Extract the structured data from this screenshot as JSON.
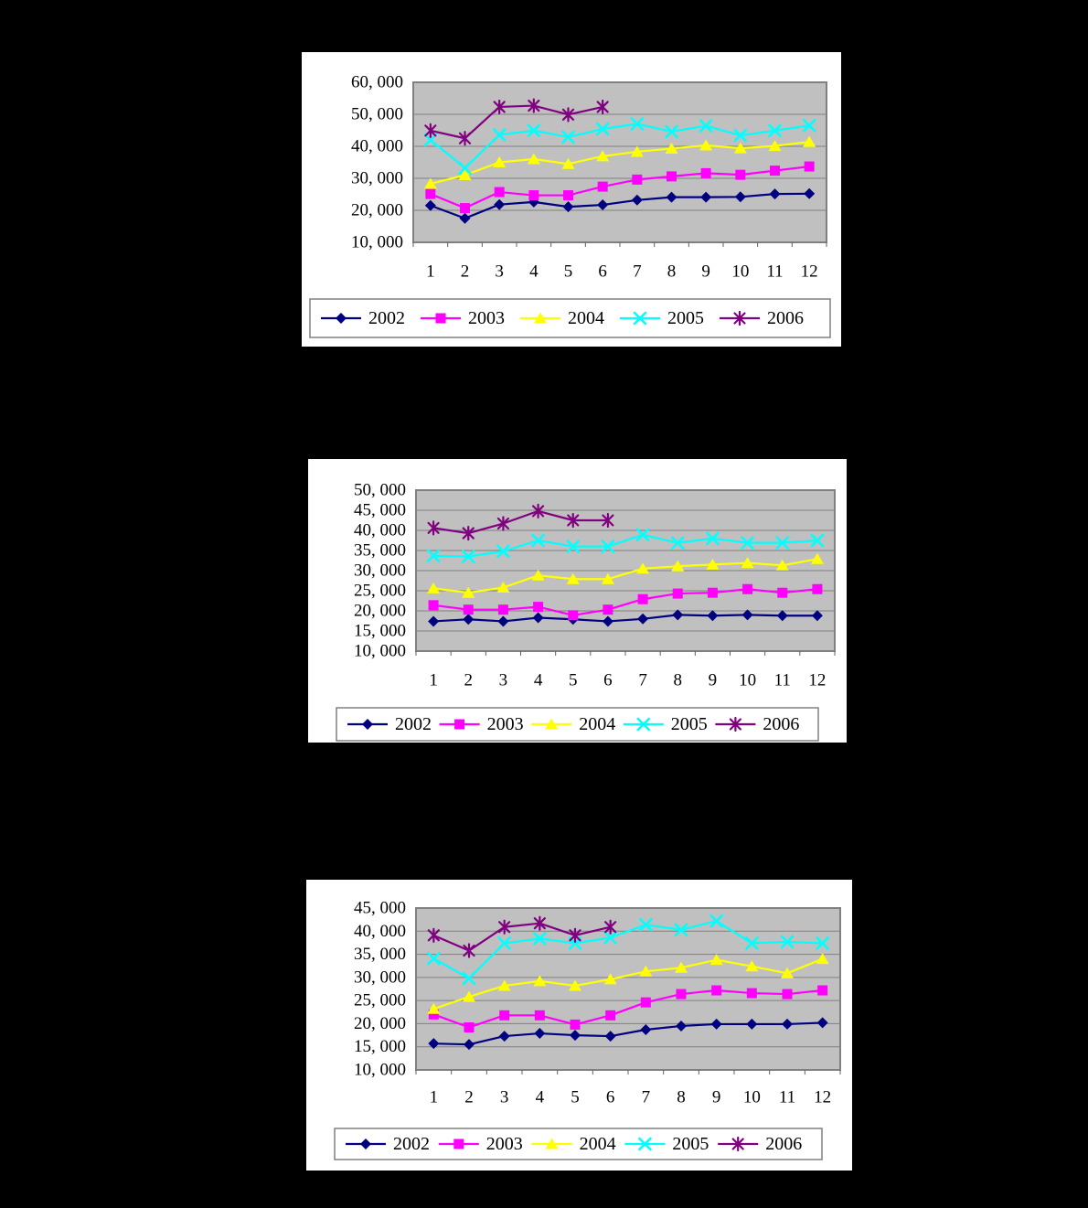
{
  "colors": {
    "page_background": "#000000",
    "panel_background": "#FFFFFF",
    "plot_background": "#C0C0C0",
    "gridline": "#808080",
    "plot_border": "#808080",
    "tick_mark": "#606060",
    "axis_text": "#000000",
    "legend_border": "#808080",
    "legend_background": "#FFFFFF"
  },
  "chart_data": [
    {
      "type": "line",
      "title": "",
      "xlabel": "",
      "ylabel": "",
      "grid": "horizontal",
      "legend_position": "bottom",
      "categories": [
        1,
        2,
        3,
        4,
        5,
        6,
        7,
        8,
        9,
        10,
        11,
        12
      ],
      "xtick_labels": [
        "1",
        "2",
        "3",
        "4",
        "5",
        "6",
        "7",
        "8",
        "9",
        "10",
        "11",
        "12"
      ],
      "ylim": [
        10000,
        60000
      ],
      "ytick_interval": 10000,
      "ytick_labels": [
        "60, 000",
        "50, 000",
        "40, 000",
        "30, 000",
        "20, 000",
        "10, 000"
      ],
      "series": [
        {
          "name": "2002",
          "color": "#000080",
          "marker": "diamond",
          "values": [
            21500,
            17500,
            21800,
            22600,
            21100,
            21700,
            23200,
            24100,
            24100,
            24200,
            25100,
            25200
          ]
        },
        {
          "name": "2003",
          "color": "#FF00FF",
          "marker": "square",
          "values": [
            25100,
            20700,
            25700,
            24700,
            24700,
            27400,
            29600,
            30600,
            31600,
            31100,
            32400,
            33700
          ]
        },
        {
          "name": "2004",
          "color": "#FFFF00",
          "marker": "triangle",
          "values": [
            28300,
            31000,
            35000,
            36000,
            34500,
            36900,
            38300,
            39300,
            40300,
            39400,
            40100,
            41400
          ]
        },
        {
          "name": "2005",
          "color": "#00FFFF",
          "marker": "x",
          "values": [
            42000,
            33200,
            43600,
            44900,
            42900,
            45400,
            47000,
            44600,
            46400,
            43400,
            44900,
            46500
          ]
        },
        {
          "name": "2006",
          "color": "#800080",
          "marker": "asterisk",
          "values": [
            44900,
            42500,
            52300,
            52700,
            49900,
            52300
          ]
        }
      ]
    },
    {
      "type": "line",
      "title": "",
      "xlabel": "",
      "ylabel": "",
      "grid": "horizontal",
      "legend_position": "bottom",
      "categories": [
        1,
        2,
        3,
        4,
        5,
        6,
        7,
        8,
        9,
        10,
        11,
        12
      ],
      "xtick_labels": [
        "1",
        "2",
        "3",
        "4",
        "5",
        "6",
        "7",
        "8",
        "9",
        "10",
        "11",
        "12"
      ],
      "ylim": [
        10000,
        50000
      ],
      "ytick_interval": 5000,
      "ytick_labels": [
        "50, 000",
        "45, 000",
        "40, 000",
        "35, 000",
        "30, 000",
        "25, 000",
        "20, 000",
        "15, 000",
        "10, 000"
      ],
      "series": [
        {
          "name": "2002",
          "color": "#000080",
          "marker": "diamond",
          "values": [
            17400,
            17900,
            17400,
            18300,
            17900,
            17400,
            18000,
            19000,
            18800,
            19000,
            18800,
            18800
          ]
        },
        {
          "name": "2003",
          "color": "#FF00FF",
          "marker": "square",
          "values": [
            21400,
            20300,
            20300,
            21000,
            18900,
            20300,
            22900,
            24300,
            24500,
            25400,
            24500,
            25400
          ]
        },
        {
          "name": "2004",
          "color": "#FFFF00",
          "marker": "triangle",
          "values": [
            25600,
            24500,
            25800,
            28800,
            27900,
            27900,
            30500,
            31100,
            31500,
            31900,
            31300,
            32900
          ]
        },
        {
          "name": "2005",
          "color": "#00FFFF",
          "marker": "x",
          "values": [
            33700,
            33500,
            34800,
            37500,
            36000,
            36000,
            38900,
            36900,
            38000,
            36900,
            36900,
            37500
          ]
        },
        {
          "name": "2006",
          "color": "#800080",
          "marker": "asterisk",
          "values": [
            40600,
            39300,
            41700,
            44800,
            42500,
            42500
          ]
        }
      ]
    },
    {
      "type": "line",
      "title": "",
      "xlabel": "",
      "ylabel": "",
      "grid": "horizontal",
      "legend_position": "bottom",
      "categories": [
        1,
        2,
        3,
        4,
        5,
        6,
        7,
        8,
        9,
        10,
        11,
        12
      ],
      "xtick_labels": [
        "1",
        "2",
        "3",
        "4",
        "5",
        "6",
        "7",
        "8",
        "9",
        "10",
        "11",
        "12"
      ],
      "ylim": [
        10000,
        45000
      ],
      "ytick_interval": 5000,
      "ytick_labels": [
        "45, 000",
        "40, 000",
        "35, 000",
        "30, 000",
        "25, 000",
        "20, 000",
        "15, 000",
        "10, 000"
      ],
      "series": [
        {
          "name": "2002",
          "color": "#000080",
          "marker": "diamond",
          "values": [
            15700,
            15500,
            17300,
            17900,
            17500,
            17300,
            18700,
            19500,
            19900,
            19900,
            19900,
            20200
          ]
        },
        {
          "name": "2003",
          "color": "#FF00FF",
          "marker": "square",
          "values": [
            22000,
            19200,
            21800,
            21800,
            19800,
            21800,
            24600,
            26400,
            27200,
            26600,
            26400,
            27200
          ]
        },
        {
          "name": "2004",
          "color": "#FFFF00",
          "marker": "triangle",
          "values": [
            23200,
            25800,
            28200,
            29200,
            28200,
            29600,
            31300,
            32100,
            33800,
            32400,
            30900,
            34000
          ]
        },
        {
          "name": "2005",
          "color": "#00FFFF",
          "marker": "x",
          "values": [
            34100,
            29800,
            37400,
            38400,
            37400,
            38600,
            41400,
            40300,
            42200,
            37400,
            37700,
            37400
          ]
        },
        {
          "name": "2006",
          "color": "#800080",
          "marker": "asterisk",
          "values": [
            39100,
            35800,
            40900,
            41700,
            39100,
            40900
          ]
        }
      ]
    }
  ]
}
